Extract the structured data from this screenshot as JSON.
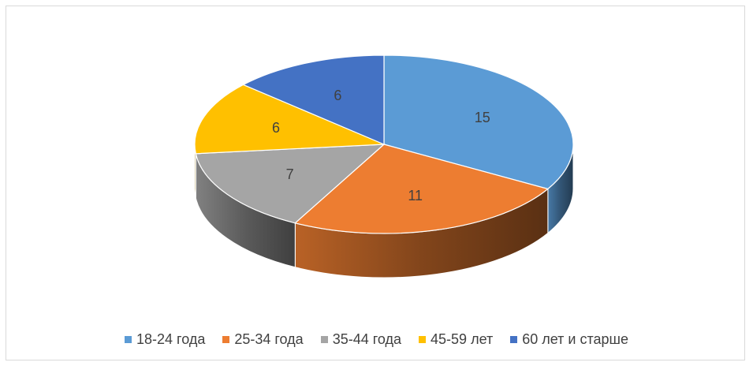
{
  "chart_data": {
    "type": "pie",
    "variant": "3d",
    "title": "",
    "categories": [
      "18-24 года",
      "25-34 года",
      "35-44 года",
      "45-59 лет",
      "60 лет и старше"
    ],
    "values": [
      15,
      11,
      7,
      6,
      6
    ],
    "data_labels": [
      "15",
      "11",
      "7",
      "6",
      "6"
    ],
    "colors": [
      "#5b9bd5",
      "#ed7d31",
      "#a5a5a5",
      "#ffc000",
      "#4472c4"
    ],
    "legend": {
      "placement": "bottom",
      "items": [
        {
          "label": "18-24 года",
          "color": "#5b9bd5"
        },
        {
          "label": "25-34 года",
          "color": "#ed7d31"
        },
        {
          "label": "35-44 года",
          "color": "#a5a5a5"
        },
        {
          "label": "45-59 лет",
          "color": "#ffc000"
        },
        {
          "label": "60 лет и старше",
          "color": "#4472c4"
        }
      ]
    }
  }
}
